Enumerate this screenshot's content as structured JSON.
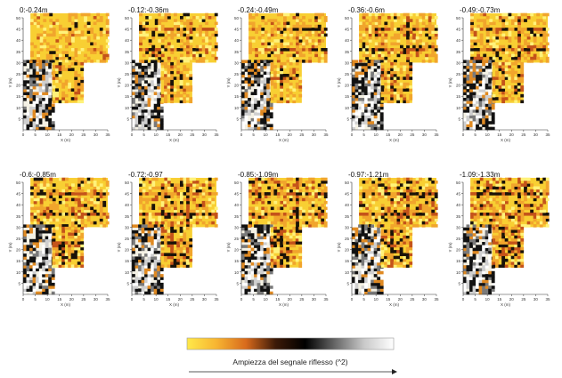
{
  "chart_data": {
    "type": "heatmap",
    "panels": [
      {
        "title": "0:-0.24m"
      },
      {
        "title": "-0.12:-0.36m"
      },
      {
        "title": "-0.24:-0.49m"
      },
      {
        "title": "-0.36:-0.6m"
      },
      {
        "title": "-0.49:-0.73m"
      },
      {
        "title": "-0.6:-0.85m"
      },
      {
        "title": "-0.72:-0.97"
      },
      {
        "title": "-0.85:-1.09m"
      },
      {
        "title": "-0.97:-1.21m"
      },
      {
        "title": "-1.09:-1.33m"
      }
    ],
    "xlabel": "X (m)",
    "ylabel": "Y (m)",
    "xlim": [
      0,
      35
    ],
    "ylim": [
      0,
      50
    ],
    "xticks": [
      0,
      5,
      10,
      15,
      20,
      25,
      30,
      35
    ],
    "yticks": [
      5,
      10,
      15,
      20,
      25,
      30,
      35,
      40,
      45,
      50
    ],
    "colorbar": {
      "label": "Ampiezza del segnale riflesso (^2)",
      "colors": [
        "#ffe94a",
        "#f7b431",
        "#d86a1c",
        "#3c1a08",
        "#000000",
        "#666666",
        "#c9c9c9",
        "#ffffff"
      ]
    },
    "grid": false,
    "legend": "bottom"
  }
}
